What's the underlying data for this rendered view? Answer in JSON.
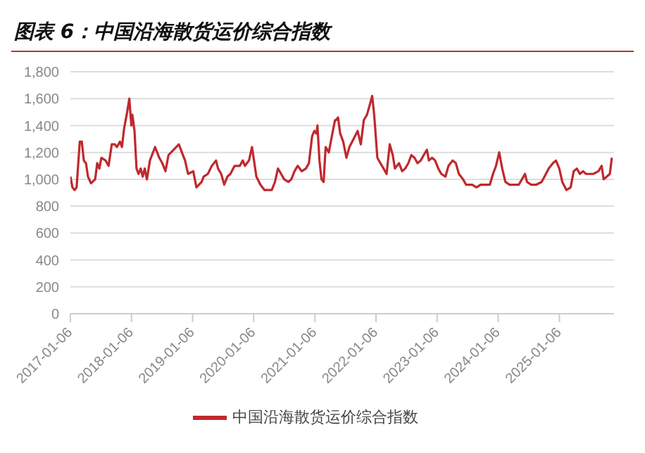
{
  "chart_data": {
    "type": "line",
    "title": "图表 6：中国沿海散货运价综合指数",
    "x": [
      "2017-01-06",
      "2017-01-18",
      "2017-01-31",
      "2017-02-12",
      "2017-03-03",
      "2017-03-15",
      "2017-03-27",
      "2017-04-09",
      "2017-04-21",
      "2017-05-09",
      "2017-06-03",
      "2017-06-15",
      "2017-06-28",
      "2017-07-10",
      "2017-08-04",
      "2017-08-22",
      "2017-09-10",
      "2017-09-28",
      "2017-10-11",
      "2017-10-29",
      "2017-11-10",
      "2017-11-23",
      "2017-12-11",
      "2017-12-24",
      "2018-01-05",
      "2018-01-11",
      "2018-01-24",
      "2018-02-05",
      "2018-02-17",
      "2018-03-02",
      "2018-03-14",
      "2018-03-26",
      "2018-04-08",
      "2018-04-26",
      "2018-05-27",
      "2018-06-21",
      "2018-07-09",
      "2018-07-28",
      "2018-08-15",
      "2018-09-15",
      "2018-10-16",
      "2018-11-03",
      "2018-11-22",
      "2018-12-10",
      "2019-01-10",
      "2019-01-29",
      "2019-03-01",
      "2019-03-13",
      "2019-04-07",
      "2019-05-01",
      "2019-05-26",
      "2019-06-07",
      "2019-06-26",
      "2019-07-14",
      "2019-08-02",
      "2019-08-20",
      "2019-09-14",
      "2019-10-15",
      "2019-11-02",
      "2019-11-15",
      "2019-12-09",
      "2019-12-27",
      "2020-01-22",
      "2020-02-15",
      "2020-03-11",
      "2020-04-05",
      "2020-04-23",
      "2020-05-12",
      "2020-05-30",
      "2020-06-18",
      "2020-07-06",
      "2020-07-31",
      "2020-08-18",
      "2020-09-06",
      "2020-09-25",
      "2020-10-19",
      "2020-11-13",
      "2020-12-01",
      "2020-12-20",
      "2021-01-02",
      "2021-01-15",
      "2021-01-21",
      "2021-02-02",
      "2021-02-14",
      "2021-02-27",
      "2021-03-11",
      "2021-03-30",
      "2021-04-17",
      "2021-05-06",
      "2021-05-12",
      "2021-05-24",
      "2021-06-06",
      "2021-06-24",
      "2021-07-13",
      "2021-07-31",
      "2021-08-25",
      "2021-09-18",
      "2021-10-07",
      "2021-10-25",
      "2021-11-13",
      "2021-12-01",
      "2021-12-14",
      "2021-12-26",
      "2022-01-14",
      "2022-02-01",
      "2022-02-20",
      "2022-03-10",
      "2022-03-29",
      "2022-04-16",
      "2022-04-29",
      "2022-05-11",
      "2022-05-23",
      "2022-06-11",
      "2022-06-29",
      "2022-07-18",
      "2022-08-05",
      "2022-08-24",
      "2022-09-11",
      "2022-09-30",
      "2022-10-18",
      "2022-11-06",
      "2022-11-18",
      "2022-12-07",
      "2022-12-25",
      "2023-01-13",
      "2023-01-31",
      "2023-02-25",
      "2023-03-15",
      "2023-04-09",
      "2023-04-28",
      "2023-05-16",
      "2023-06-10",
      "2023-06-28",
      "2023-07-17",
      "2023-08-04",
      "2023-08-29",
      "2023-09-23",
      "2023-10-17",
      "2023-11-17",
      "2023-12-06",
      "2023-12-24",
      "2024-01-12",
      "2024-01-30",
      "2024-02-18",
      "2024-03-14",
      "2024-04-13",
      "2024-05-08",
      "2024-05-27",
      "2024-06-14",
      "2024-06-26",
      "2024-07-21",
      "2024-08-21",
      "2024-09-21",
      "2024-10-09",
      "2024-11-03",
      "2024-11-28",
      "2024-12-16",
      "2025-01-05",
      "2025-01-23",
      "2025-02-17",
      "2025-03-14",
      "2025-04-01",
      "2025-04-20",
      "2025-05-08",
      "2025-05-27",
      "2025-06-14",
      "2025-07-03",
      "2025-07-27",
      "2025-08-27",
      "2025-09-15",
      "2025-09-27",
      "2025-10-16",
      "2025-11-03",
      "2025-11-15"
    ],
    "series": [
      {
        "name": "中国沿海散货运价综合指数",
        "color": "#c0282d",
        "values": [
          1020,
          940,
          920,
          940,
          1280,
          1280,
          1140,
          1120,
          1020,
          970,
          1000,
          1120,
          1080,
          1160,
          1140,
          1100,
          1260,
          1260,
          1240,
          1280,
          1240,
          1380,
          1500,
          1600,
          1400,
          1480,
          1360,
          1080,
          1040,
          1080,
          1020,
          1080,
          1000,
          1140,
          1240,
          1160,
          1120,
          1060,
          1180,
          1220,
          1260,
          1200,
          1140,
          1040,
          1060,
          940,
          980,
          1020,
          1040,
          1100,
          1140,
          1080,
          1040,
          960,
          1020,
          1040,
          1100,
          1100,
          1140,
          1100,
          1140,
          1240,
          1020,
          960,
          920,
          920,
          920,
          980,
          1080,
          1040,
          1000,
          980,
          1000,
          1060,
          1100,
          1060,
          1080,
          1120,
          1320,
          1360,
          1340,
          1400,
          1140,
          1000,
          980,
          1240,
          1200,
          1320,
          1440,
          1440,
          1460,
          1340,
          1280,
          1160,
          1240,
          1300,
          1360,
          1260,
          1440,
          1480,
          1560,
          1620,
          1480,
          1160,
          1120,
          1080,
          1040,
          1260,
          1180,
          1080,
          1100,
          1120,
          1060,
          1080,
          1120,
          1180,
          1160,
          1120,
          1140,
          1180,
          1220,
          1140,
          1160,
          1140,
          1080,
          1040,
          1020,
          1100,
          1140,
          1120,
          1040,
          1000,
          960,
          960,
          960,
          940,
          960,
          960,
          960,
          1040,
          1100,
          1200,
          1080,
          980,
          960,
          960,
          960,
          1000,
          1040,
          980,
          960,
          960,
          980,
          1020,
          1080,
          1120,
          1140,
          1080,
          980,
          920,
          940,
          1060,
          1080,
          1040,
          1060,
          1040,
          1040,
          1040,
          1060,
          1100,
          1000,
          1020,
          1040,
          1160
        ]
      }
    ],
    "xlim": [
      "2017-01-06",
      "2025-11-28"
    ],
    "xticks": [
      "2017-01-06",
      "2018-01-06",
      "2019-01-06",
      "2020-01-06",
      "2021-01-06",
      "2022-01-06",
      "2023-01-06",
      "2024-01-06",
      "2025-01-06"
    ],
    "ylim": [
      0,
      1800
    ],
    "yticks": [
      0,
      200,
      400,
      600,
      800,
      {
        "value": 1000,
        "label": "1,000"
      },
      {
        "value": 1200,
        "label": "1,200"
      },
      {
        "value": 1400,
        "label": "1,400"
      },
      {
        "value": 1600,
        "label": "1,600"
      },
      {
        "value": 1800,
        "label": "1,800"
      }
    ],
    "grid": "y",
    "legend": "bottom",
    "marker": "none",
    "line_style": "solid"
  }
}
